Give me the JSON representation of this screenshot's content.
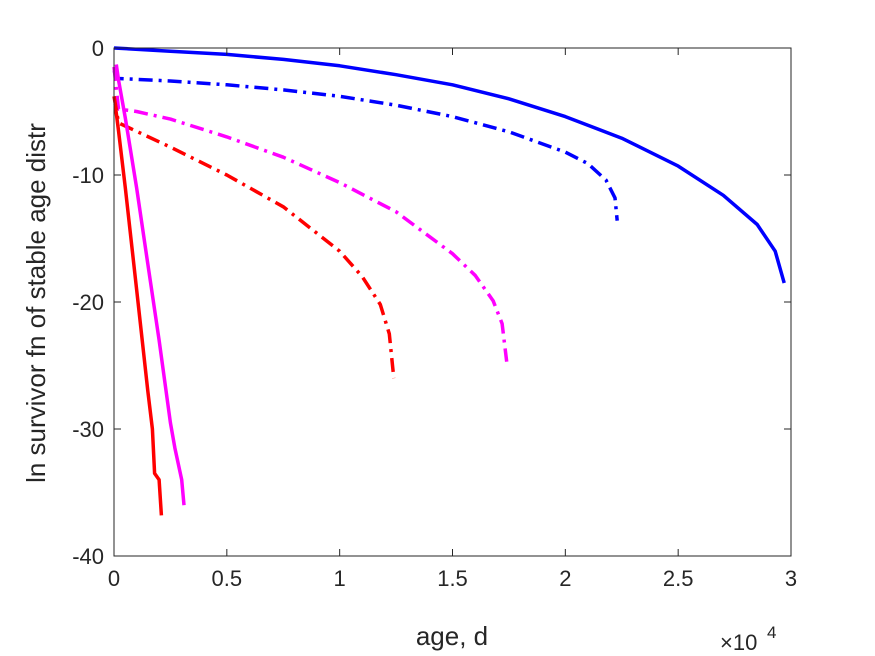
{
  "chart_data": {
    "type": "line",
    "title": "",
    "xlabel": "age, d",
    "ylabel": "ln survivor fn of stable age distr",
    "x_multiplier_label": {
      "base": "×10",
      "exponent": "4"
    },
    "xlim": [
      0,
      3
    ],
    "ylim": [
      -40,
      0
    ],
    "x_ticks": [
      0,
      0.5,
      1,
      1.5,
      2,
      2.5,
      3
    ],
    "x_tick_labels": [
      "0",
      "0.5",
      "1",
      "1.5",
      "2",
      "2.5",
      "3"
    ],
    "y_ticks": [
      0,
      -10,
      -20,
      -30,
      -40
    ],
    "y_tick_labels": [
      "0",
      "-10",
      "-20",
      "-30",
      "-40"
    ],
    "grid": false,
    "box": true,
    "series": [
      {
        "color": "#0000ff",
        "style": "solid",
        "x": [
          0,
          0.25,
          0.5,
          0.75,
          1.0,
          1.25,
          1.5,
          1.75,
          2.0,
          2.25,
          2.5,
          2.7,
          2.85,
          2.93,
          2.97
        ],
        "y": [
          0,
          -0.25,
          -0.5,
          -0.9,
          -1.4,
          -2.1,
          -2.9,
          -4.0,
          -5.4,
          -7.1,
          -9.3,
          -11.6,
          -13.9,
          -16.0,
          -18.5
        ]
      },
      {
        "color": "#0000ff",
        "style": "dashdot",
        "x": [
          0,
          0.02,
          0.25,
          0.5,
          0.75,
          1.0,
          1.25,
          1.5,
          1.75,
          2.0,
          2.1,
          2.18,
          2.22,
          2.23
        ],
        "y": [
          -1.8,
          -2.4,
          -2.6,
          -2.9,
          -3.3,
          -3.8,
          -4.5,
          -5.4,
          -6.6,
          -8.2,
          -9.1,
          -10.4,
          -11.8,
          -13.6
        ]
      },
      {
        "color": "#ff00ff",
        "style": "dashdot",
        "x": [
          0,
          0.02,
          0.1,
          0.25,
          0.5,
          0.75,
          1.0,
          1.25,
          1.5,
          1.6,
          1.68,
          1.72,
          1.74
        ],
        "y": [
          -1.5,
          -4.8,
          -5.0,
          -5.6,
          -7.0,
          -8.6,
          -10.6,
          -12.9,
          -16.2,
          -17.9,
          -19.9,
          -21.7,
          -24.7
        ]
      },
      {
        "color": "#ff0000",
        "style": "dashdot",
        "x": [
          0,
          0.02,
          0.25,
          0.5,
          0.75,
          1.0,
          1.1,
          1.18,
          1.22,
          1.24
        ],
        "y": [
          -3.8,
          -5.9,
          -7.8,
          -10.0,
          -12.5,
          -16.0,
          -18.0,
          -20.2,
          -22.5,
          -26.0
        ]
      },
      {
        "color": "#ff00ff",
        "style": "solid",
        "x": [
          0.01,
          0.02,
          0.05,
          0.1,
          0.15,
          0.2,
          0.25,
          0.27,
          0.3,
          0.31
        ],
        "y": [
          -1.3,
          -2.5,
          -5.5,
          -11.0,
          -17.0,
          -23.0,
          -29.5,
          -31.5,
          -34.0,
          -36.0
        ]
      },
      {
        "color": "#ff0000",
        "style": "solid",
        "x": [
          0.005,
          0.02,
          0.05,
          0.1,
          0.15,
          0.17,
          0.18,
          0.2,
          0.21
        ],
        "y": [
          -4.4,
          -6.5,
          -11.0,
          -19.0,
          -27.0,
          -30.0,
          -33.5,
          -34.0,
          -36.8
        ]
      }
    ]
  }
}
